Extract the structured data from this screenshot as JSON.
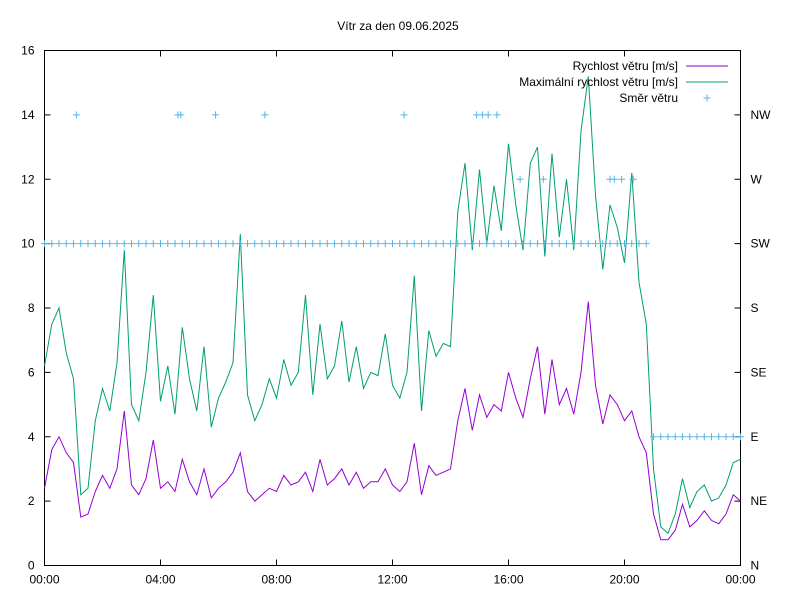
{
  "chart_data": {
    "type": "line",
    "title": "Vítr za den 09.06.2025",
    "x_unit": "hours",
    "xlim": [
      0,
      24
    ],
    "x_ticks": [
      "00:00",
      "04:00",
      "08:00",
      "12:00",
      "16:00",
      "20:00",
      "00:00"
    ],
    "ylim": [
      0,
      16
    ],
    "y_ticks": [
      "0",
      "2",
      "4",
      "6",
      "8",
      "10",
      "12",
      "14",
      "16"
    ],
    "y2_ticks": [
      "N",
      "NE",
      "E",
      "SE",
      "S",
      "SW",
      "W",
      "NW"
    ],
    "grid": false,
    "legend_position": "top-right",
    "series": [
      {
        "name": "Rychlost větru [m/s]",
        "color": "#9400d3",
        "x": [
          0.0,
          0.25,
          0.5,
          0.75,
          1.0,
          1.25,
          1.5,
          1.75,
          2.0,
          2.25,
          2.5,
          2.75,
          3.0,
          3.25,
          3.5,
          3.75,
          4.0,
          4.25,
          4.5,
          4.75,
          5.0,
          5.25,
          5.5,
          5.75,
          6.0,
          6.25,
          6.5,
          6.75,
          7.0,
          7.25,
          7.5,
          7.75,
          8.0,
          8.25,
          8.5,
          8.75,
          9.0,
          9.25,
          9.5,
          9.75,
          10.0,
          10.25,
          10.5,
          10.75,
          11.0,
          11.25,
          11.5,
          11.75,
          12.0,
          12.25,
          12.5,
          12.75,
          13.0,
          13.25,
          13.5,
          13.75,
          14.0,
          14.25,
          14.5,
          14.75,
          15.0,
          15.25,
          15.5,
          15.75,
          16.0,
          16.25,
          16.5,
          16.75,
          17.0,
          17.25,
          17.5,
          17.75,
          18.0,
          18.25,
          18.5,
          18.75,
          19.0,
          19.25,
          19.5,
          19.75,
          20.0,
          20.25,
          20.5,
          20.75,
          21.0,
          21.25,
          21.5,
          21.75,
          22.0,
          22.25,
          22.5,
          22.75,
          23.0,
          23.25,
          23.5,
          23.75,
          24.0
        ],
        "values": [
          2.4,
          3.6,
          4.0,
          3.5,
          3.2,
          1.5,
          1.6,
          2.3,
          2.8,
          2.4,
          3.0,
          4.8,
          2.5,
          2.2,
          2.7,
          3.9,
          2.4,
          2.6,
          2.3,
          3.3,
          2.6,
          2.2,
          3.0,
          2.1,
          2.4,
          2.6,
          2.9,
          3.5,
          2.3,
          2.0,
          2.2,
          2.4,
          2.3,
          2.8,
          2.5,
          2.6,
          2.9,
          2.3,
          3.3,
          2.5,
          2.7,
          3.0,
          2.5,
          2.9,
          2.4,
          2.6,
          2.6,
          3.0,
          2.5,
          2.3,
          2.6,
          3.8,
          2.2,
          3.1,
          2.8,
          2.9,
          3.0,
          4.5,
          5.5,
          4.2,
          5.3,
          4.6,
          5.0,
          4.8,
          6.0,
          5.2,
          4.6,
          5.8,
          6.8,
          4.7,
          6.4,
          5.0,
          5.5,
          4.7,
          6.0,
          8.2,
          5.6,
          4.4,
          5.3,
          5.0,
          4.5,
          4.8,
          4.0,
          3.5,
          1.6,
          0.8,
          0.8,
          1.1,
          1.9,
          1.2,
          1.4,
          1.7,
          1.4,
          1.3,
          1.6,
          2.2,
          2.0
        ]
      },
      {
        "name": "Maximální rychlost větru [m/s]",
        "color": "#009e73",
        "x": [
          0.0,
          0.25,
          0.5,
          0.75,
          1.0,
          1.25,
          1.5,
          1.75,
          2.0,
          2.25,
          2.5,
          2.75,
          3.0,
          3.25,
          3.5,
          3.75,
          4.0,
          4.25,
          4.5,
          4.75,
          5.0,
          5.25,
          5.5,
          5.75,
          6.0,
          6.25,
          6.5,
          6.75,
          7.0,
          7.25,
          7.5,
          7.75,
          8.0,
          8.25,
          8.5,
          8.75,
          9.0,
          9.25,
          9.5,
          9.75,
          10.0,
          10.25,
          10.5,
          10.75,
          11.0,
          11.25,
          11.5,
          11.75,
          12.0,
          12.25,
          12.5,
          12.75,
          13.0,
          13.25,
          13.5,
          13.75,
          14.0,
          14.25,
          14.5,
          14.75,
          15.0,
          15.25,
          15.5,
          15.75,
          16.0,
          16.25,
          16.5,
          16.75,
          17.0,
          17.25,
          17.5,
          17.75,
          18.0,
          18.25,
          18.5,
          18.75,
          19.0,
          19.25,
          19.5,
          19.75,
          20.0,
          20.25,
          20.5,
          20.75,
          21.0,
          21.25,
          21.5,
          21.75,
          22.0,
          22.25,
          22.5,
          22.75,
          23.0,
          23.25,
          23.5,
          23.75,
          24.0
        ],
        "values": [
          6.2,
          7.5,
          8.0,
          6.6,
          5.8,
          2.2,
          2.4,
          4.5,
          5.5,
          4.8,
          6.3,
          9.8,
          5.0,
          4.5,
          6.0,
          8.4,
          5.1,
          6.2,
          4.7,
          7.4,
          5.8,
          4.8,
          6.8,
          4.3,
          5.2,
          5.7,
          6.3,
          10.3,
          5.3,
          4.5,
          5.0,
          5.8,
          5.2,
          6.4,
          5.6,
          6.0,
          8.4,
          5.3,
          7.5,
          5.8,
          6.2,
          7.6,
          5.7,
          6.8,
          5.5,
          6.0,
          5.9,
          7.2,
          5.6,
          5.2,
          6.0,
          9.0,
          4.8,
          7.3,
          6.5,
          6.9,
          6.8,
          11.0,
          12.5,
          9.8,
          12.3,
          10.0,
          11.8,
          10.4,
          13.1,
          11.2,
          9.8,
          12.5,
          13.0,
          9.6,
          12.8,
          10.2,
          12.0,
          9.8,
          13.5,
          15.2,
          11.5,
          9.2,
          11.2,
          10.5,
          9.4,
          12.2,
          8.8,
          7.5,
          3.0,
          1.2,
          1.0,
          1.6,
          2.7,
          1.8,
          2.3,
          2.5,
          2.0,
          2.1,
          2.5,
          3.2,
          3.3
        ]
      },
      {
        "name": "Směr větru",
        "color": "#56b4e9",
        "marker": "plus",
        "y_axis": "right",
        "x": [
          0.0,
          0.25,
          0.5,
          0.75,
          1.0,
          1.25,
          1.5,
          1.75,
          2.0,
          2.25,
          2.5,
          2.75,
          3.0,
          3.25,
          3.5,
          3.75,
          4.0,
          4.25,
          4.5,
          4.75,
          5.0,
          5.25,
          5.5,
          5.75,
          6.0,
          6.25,
          6.5,
          6.75,
          7.0,
          7.25,
          7.5,
          7.75,
          8.0,
          8.25,
          8.5,
          8.75,
          9.0,
          9.25,
          9.5,
          9.75,
          10.0,
          10.25,
          10.5,
          10.75,
          11.0,
          11.25,
          11.5,
          11.75,
          12.0,
          12.25,
          12.5,
          12.75,
          13.0,
          13.25,
          13.5,
          13.75,
          14.0,
          14.25,
          14.5,
          14.75,
          15.0,
          15.25,
          15.5,
          15.75,
          16.0,
          16.25,
          16.5,
          16.75,
          17.0,
          17.25,
          17.5,
          17.75,
          18.0,
          18.25,
          18.5,
          18.75,
          19.0,
          19.25,
          19.5,
          19.75,
          20.0,
          20.25,
          20.5,
          20.75,
          21.0,
          21.25,
          21.5,
          21.75,
          22.0,
          22.25,
          22.5,
          22.75,
          23.0,
          23.25,
          23.5,
          23.75,
          24.0,
          1.1,
          4.6,
          4.7,
          5.9,
          7.6,
          12.4,
          14.9,
          15.1,
          15.3,
          15.6,
          16.4,
          17.2,
          19.5,
          19.65,
          19.9,
          20.3
        ],
        "values": [
          10,
          10,
          10,
          10,
          10,
          10,
          10,
          10,
          10,
          10,
          10,
          10,
          10,
          10,
          10,
          10,
          10,
          10,
          10,
          10,
          10,
          10,
          10,
          10,
          10,
          10,
          10,
          10,
          10,
          10,
          10,
          10,
          10,
          10,
          10,
          10,
          10,
          10,
          10,
          10,
          10,
          10,
          10,
          10,
          10,
          10,
          10,
          10,
          10,
          10,
          10,
          10,
          10,
          10,
          10,
          10,
          10,
          10,
          10,
          10,
          10,
          10,
          10,
          10,
          10,
          10,
          10,
          10,
          10,
          10,
          10,
          10,
          10,
          10,
          10,
          10,
          10,
          10,
          10,
          10,
          10,
          10,
          10,
          10,
          4,
          4,
          4,
          4,
          4,
          4,
          4,
          4,
          4,
          4,
          4,
          4,
          4,
          14,
          14,
          14,
          14,
          14,
          14,
          14,
          14,
          14,
          14,
          12,
          12,
          12,
          12,
          12,
          12
        ]
      }
    ]
  }
}
